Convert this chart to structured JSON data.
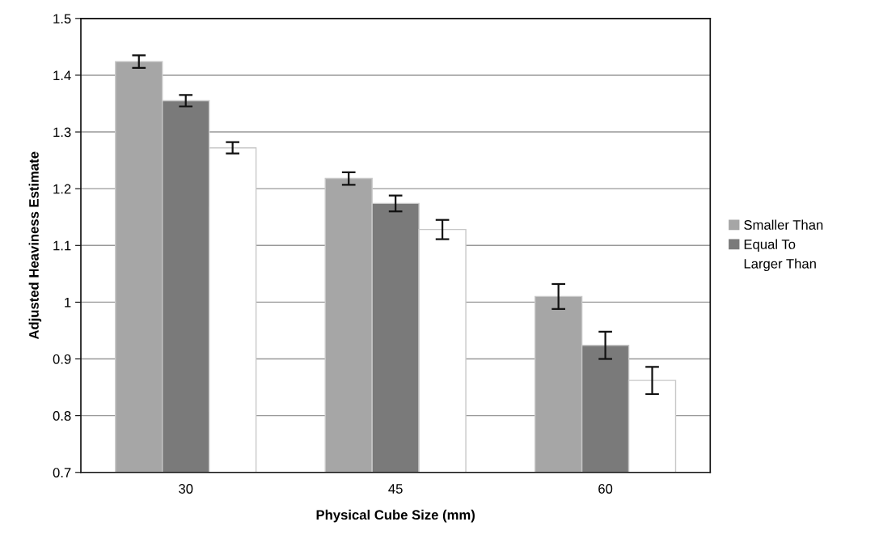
{
  "chart_data": {
    "type": "bar",
    "xlabel": "Physical Cube Size (mm)",
    "ylabel": "Adjusted Heaviness Estimate",
    "categories": [
      "30",
      "45",
      "60"
    ],
    "series": [
      {
        "name": "Smaller Than",
        "color": "#a6a6a6",
        "values": [
          1.424,
          1.218,
          1.01
        ],
        "errors": [
          0.011,
          0.011,
          0.022
        ]
      },
      {
        "name": "Equal To",
        "color": "#7a7a7a",
        "values": [
          1.355,
          1.174,
          0.924
        ],
        "errors": [
          0.01,
          0.014,
          0.024
        ]
      },
      {
        "name": "Larger Than",
        "color": "#ffffff",
        "values": [
          1.272,
          1.128,
          0.862
        ],
        "errors": [
          0.01,
          0.017,
          0.024
        ]
      }
    ],
    "ylim": [
      0.7,
      1.5
    ],
    "yticks": [
      0.7,
      0.8,
      0.9,
      1,
      1.1,
      1.2,
      1.3,
      1.4,
      1.5
    ],
    "grid": "y",
    "legend": "right"
  }
}
